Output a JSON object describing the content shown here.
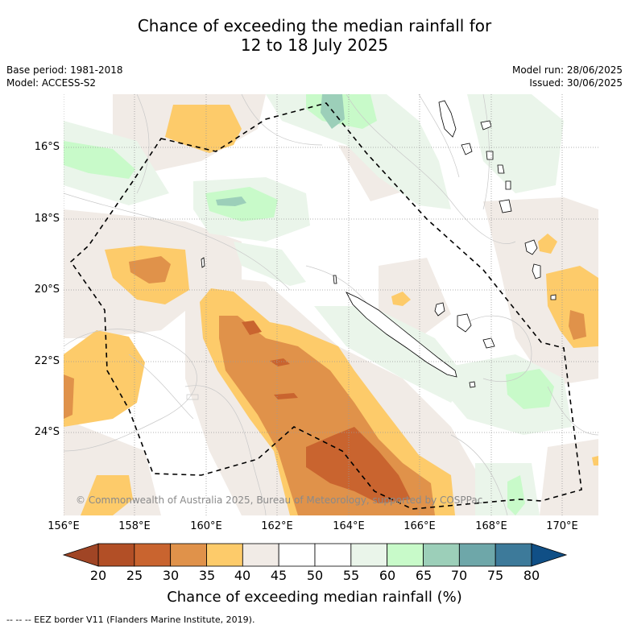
{
  "title": {
    "line1": "Chance of exceeding the median rainfall for",
    "line2": "12 to 18 July 2025"
  },
  "meta_left": {
    "base_period": "Base period: 1981-2018",
    "model": "Model: ACCESS-S2"
  },
  "meta_right": {
    "model_run": "Model run: 28/06/2025",
    "issued": "Issued: 30/06/2025"
  },
  "map": {
    "longitude_labels": [
      "156°E",
      "158°E",
      "160°E",
      "162°E",
      "164°E",
      "166°E",
      "168°E",
      "170°E"
    ],
    "latitude_labels": [
      "16°S",
      "18°S",
      "20°S",
      "22°S",
      "24°S"
    ],
    "copyright": "© Commonwealth of Australia 2025, Bureau of Meteorology, supported by COSPPac",
    "grid": true,
    "lon_range": [
      156,
      171
    ],
    "lat_range": [
      -26.3,
      -14.5
    ]
  },
  "colorbar": {
    "ticks": [
      "20",
      "25",
      "30",
      "35",
      "40",
      "45",
      "50",
      "55",
      "60",
      "65",
      "70",
      "75",
      "80"
    ],
    "colors": [
      "#a04525",
      "#b24f26",
      "#c9642f",
      "#e0924a",
      "#fdcb6a",
      "#f1ebe6",
      "#ffffff",
      "#ffffff",
      "#eaf5ea",
      "#c8fac9",
      "#9ccfb9",
      "#6ea7a9",
      "#3d7a9a",
      "#104f86"
    ],
    "title": "Chance of exceeding median rainfall (%)"
  },
  "footnote": "-- -- -- EEZ border V11 (Flanders Marine Institute, 2019)."
}
